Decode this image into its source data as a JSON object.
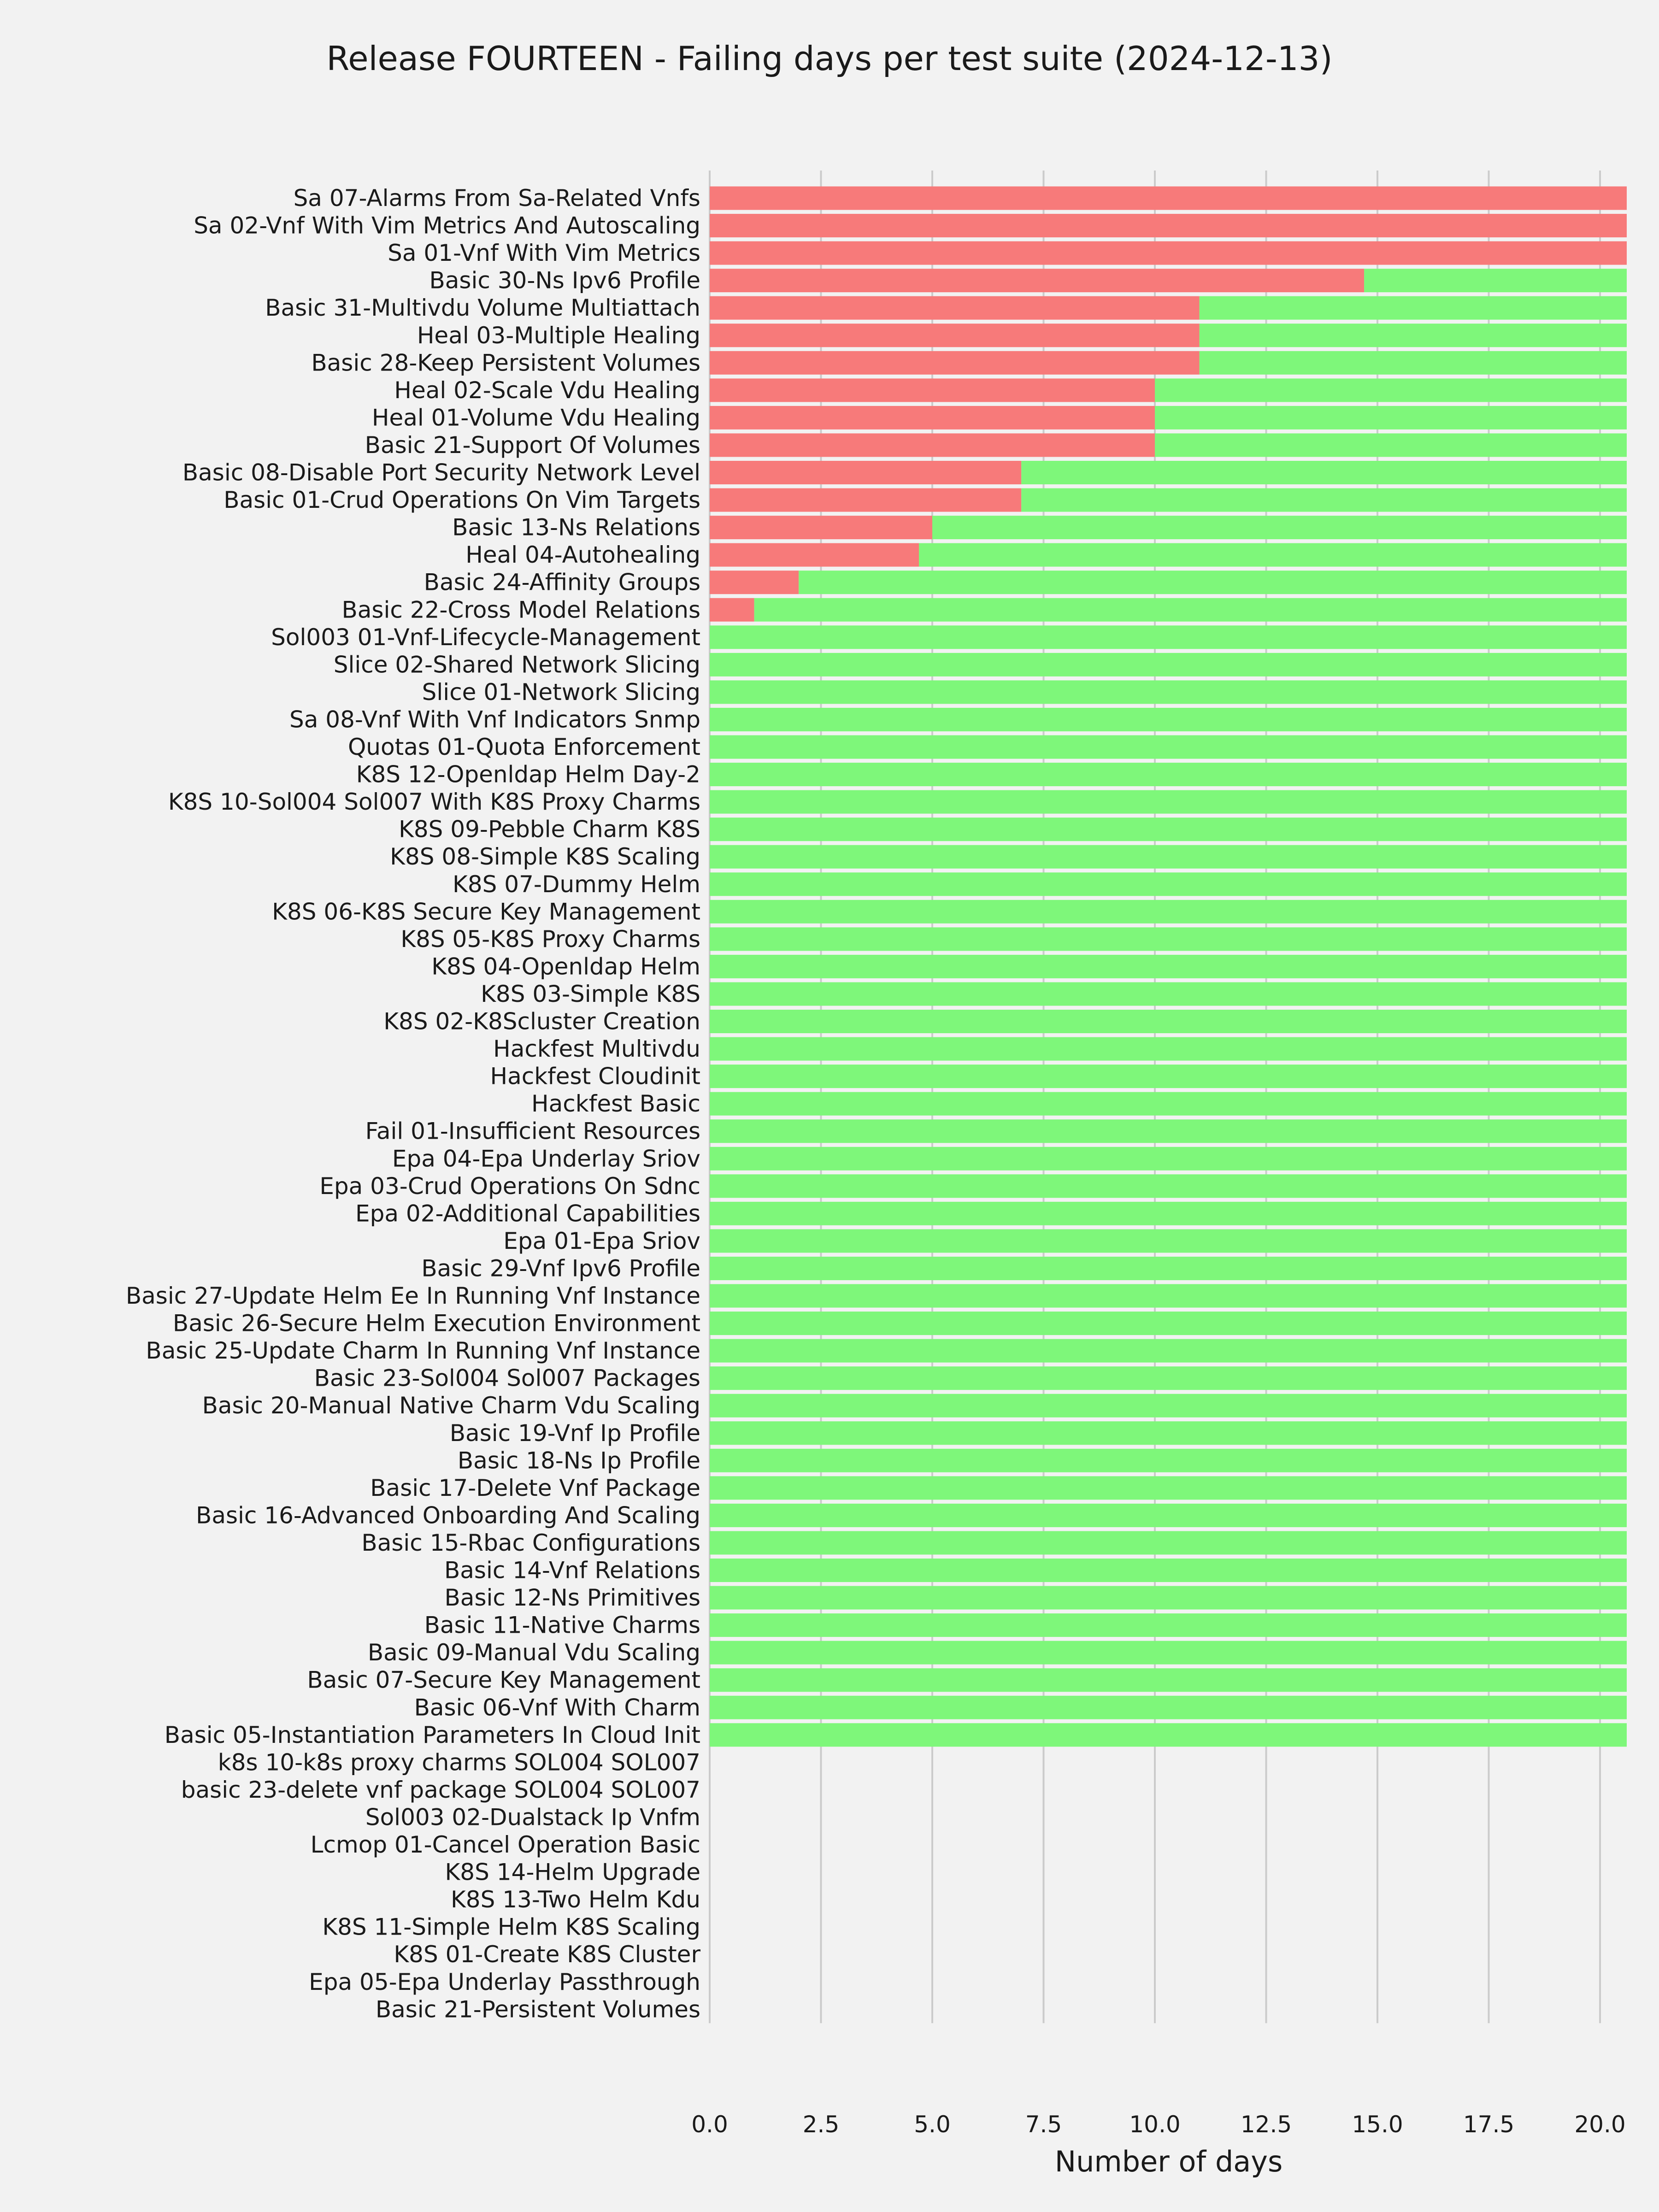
{
  "chart_data": {
    "type": "bar",
    "orientation": "horizontal",
    "stacked": true,
    "title": "Release FOURTEEN - Failing days per test suite (2024-12-13)",
    "xlabel": "Number of days",
    "ylabel": "",
    "xlim": [
      0,
      20.6
    ],
    "xticks": [
      "0.0",
      "2.5",
      "5.0",
      "7.5",
      "10.0",
      "12.5",
      "15.0",
      "17.5",
      "20.0"
    ],
    "grid": "vertical",
    "colors": {
      "failing": "#f77a7a",
      "passing": "#7ef77a",
      "background": "#f2f2f2",
      "grid": "#cbcbcb"
    },
    "categories": [
      "Sa 07-Alarms From Sa-Related Vnfs",
      "Sa 02-Vnf With Vim Metrics And Autoscaling",
      "Sa 01-Vnf With Vim Metrics",
      "Basic 30-Ns Ipv6 Profile",
      "Basic 31-Multivdu Volume Multiattach",
      "Heal 03-Multiple Healing",
      "Basic 28-Keep Persistent Volumes",
      "Heal 02-Scale Vdu Healing",
      "Heal 01-Volume Vdu Healing",
      "Basic 21-Support Of Volumes",
      "Basic 08-Disable Port Security Network Level",
      "Basic 01-Crud Operations On Vim Targets",
      "Basic 13-Ns Relations",
      "Heal 04-Autohealing",
      "Basic 24-Affinity Groups",
      "Basic 22-Cross Model Relations",
      "Sol003 01-Vnf-Lifecycle-Management",
      "Slice 02-Shared Network Slicing",
      "Slice 01-Network Slicing",
      "Sa 08-Vnf With Vnf Indicators Snmp",
      "Quotas 01-Quota Enforcement",
      "K8S 12-Openldap Helm Day-2",
      "K8S 10-Sol004 Sol007 With K8S Proxy Charms",
      "K8S 09-Pebble Charm K8S",
      "K8S 08-Simple K8S Scaling",
      "K8S 07-Dummy Helm",
      "K8S 06-K8S Secure Key Management",
      "K8S 05-K8S Proxy Charms",
      "K8S 04-Openldap Helm",
      "K8S 03-Simple K8S",
      "K8S 02-K8Scluster Creation",
      "Hackfest Multivdu",
      "Hackfest Cloudinit",
      "Hackfest Basic",
      "Fail 01-Insufficient Resources",
      "Epa 04-Epa Underlay Sriov",
      "Epa 03-Crud Operations On Sdnc",
      "Epa 02-Additional Capabilities",
      "Epa 01-Epa Sriov",
      "Basic 29-Vnf Ipv6 Profile",
      "Basic 27-Update Helm Ee In Running Vnf Instance",
      "Basic 26-Secure Helm Execution Environment",
      "Basic 25-Update Charm In Running Vnf Instance",
      "Basic 23-Sol004 Sol007 Packages",
      "Basic 20-Manual Native Charm Vdu Scaling",
      "Basic 19-Vnf Ip Profile",
      "Basic 18-Ns Ip Profile",
      "Basic 17-Delete Vnf Package",
      "Basic 16-Advanced Onboarding And Scaling",
      "Basic 15-Rbac Configurations",
      "Basic 14-Vnf Relations",
      "Basic 12-Ns Primitives",
      "Basic 11-Native Charms",
      "Basic 09-Manual Vdu Scaling",
      "Basic 07-Secure Key Management",
      "Basic 06-Vnf With Charm",
      "Basic 05-Instantiation Parameters In Cloud Init",
      "k8s 10-k8s proxy charms SOL004 SOL007",
      "basic 23-delete vnf package SOL004 SOL007",
      "Sol003 02-Dualstack Ip Vnfm",
      "Lcmop 01-Cancel Operation Basic",
      "K8S 14-Helm Upgrade",
      "K8S 13-Two Helm Kdu",
      "K8S 11-Simple Helm K8S Scaling",
      "K8S 01-Create K8S Cluster",
      "Epa 05-Epa Underlay Passthrough",
      "Basic 21-Persistent Volumes"
    ],
    "series": [
      {
        "key": "failing",
        "values": [
          20.6,
          20.6,
          20.6,
          14.7,
          11,
          11,
          11,
          10,
          10,
          10,
          7,
          7,
          5,
          4.7,
          2,
          1,
          0,
          0,
          0,
          0,
          0,
          0,
          0,
          0,
          0,
          0,
          0,
          0,
          0,
          0,
          0,
          0,
          0,
          0,
          0,
          0,
          0,
          0,
          0,
          0,
          0,
          0,
          0,
          0,
          0,
          0,
          0,
          0,
          0,
          0,
          0,
          0,
          0,
          0,
          0,
          0,
          0,
          0,
          0,
          0,
          0,
          0,
          0,
          0,
          0,
          0,
          0
        ]
      },
      {
        "key": "passing",
        "values": [
          0,
          0,
          0,
          5.9,
          9.6,
          9.6,
          9.6,
          10.6,
          10.6,
          10.6,
          13.6,
          13.6,
          15.6,
          15.9,
          18.6,
          19.6,
          20.6,
          20.6,
          20.6,
          20.6,
          20.6,
          20.6,
          20.6,
          20.6,
          20.6,
          20.6,
          20.6,
          20.6,
          20.6,
          20.6,
          20.6,
          20.6,
          20.6,
          20.6,
          20.6,
          20.6,
          20.6,
          20.6,
          20.6,
          20.6,
          20.6,
          20.6,
          20.6,
          20.6,
          20.6,
          20.6,
          20.6,
          20.6,
          20.6,
          20.6,
          20.6,
          20.6,
          20.6,
          20.6,
          20.6,
          20.6,
          20.6,
          0,
          0,
          0,
          0,
          0,
          0,
          0,
          0,
          0,
          0
        ]
      }
    ]
  }
}
